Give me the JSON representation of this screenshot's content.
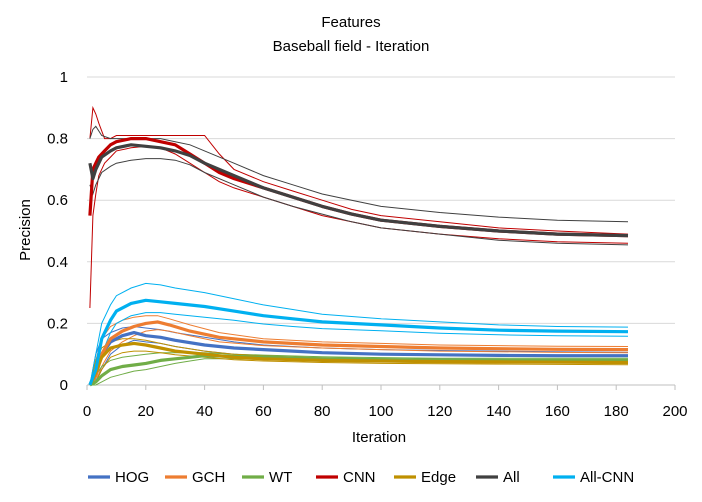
{
  "chart_data": {
    "type": "line",
    "title": "Features",
    "subtitle": "Baseball field - Iteration",
    "xlabel": "Iteration",
    "ylabel": "Precision",
    "xlim": [
      0,
      200
    ],
    "ylim": [
      0,
      1
    ],
    "xticks": [
      0,
      20,
      40,
      60,
      80,
      100,
      120,
      140,
      160,
      180,
      200
    ],
    "yticks": [
      0,
      0.2,
      0.4,
      0.6,
      0.8,
      1
    ],
    "ytick_labels": [
      "0",
      "0.2",
      "0.4",
      "0.6",
      "0.8",
      "1"
    ],
    "grid": "horizontal",
    "legend_position": "bottom",
    "series": [
      {
        "name": "HOG",
        "color": "#4472C4",
        "x": [
          1,
          3,
          5,
          8,
          12,
          16,
          20,
          25,
          30,
          40,
          50,
          60,
          70,
          80,
          100,
          120,
          140,
          160,
          184
        ],
        "mean": [
          0,
          0.03,
          0.1,
          0.14,
          0.16,
          0.17,
          0.16,
          0.155,
          0.145,
          0.13,
          0.12,
          0.115,
          0.11,
          0.105,
          0.1,
          0.098,
          0.096,
          0.095,
          0.095
        ],
        "upper": [
          0,
          0.1,
          0.15,
          0.17,
          0.185,
          0.19,
          0.185,
          0.18,
          0.17,
          0.155,
          0.14,
          0.13,
          0.125,
          0.12,
          0.115,
          0.112,
          0.11,
          0.108,
          0.106
        ],
        "lower": [
          0,
          0.01,
          0.05,
          0.1,
          0.13,
          0.145,
          0.14,
          0.135,
          0.125,
          0.11,
          0.1,
          0.095,
          0.09,
          0.088,
          0.085,
          0.084,
          0.083,
          0.082,
          0.082
        ]
      },
      {
        "name": "GCH",
        "color": "#ED7D31",
        "x": [
          1,
          3,
          5,
          8,
          12,
          16,
          20,
          24,
          28,
          35,
          45,
          60,
          80,
          100,
          120,
          140,
          160,
          184
        ],
        "mean": [
          0,
          0.03,
          0.1,
          0.15,
          0.175,
          0.19,
          0.2,
          0.205,
          0.195,
          0.175,
          0.155,
          0.14,
          0.13,
          0.125,
          0.12,
          0.118,
          0.116,
          0.115
        ],
        "upper": [
          0,
          0.08,
          0.15,
          0.19,
          0.21,
          0.22,
          0.225,
          0.225,
          0.215,
          0.195,
          0.17,
          0.15,
          0.14,
          0.135,
          0.13,
          0.128,
          0.126,
          0.125
        ],
        "lower": [
          0,
          0.01,
          0.06,
          0.11,
          0.14,
          0.16,
          0.175,
          0.18,
          0.175,
          0.16,
          0.14,
          0.128,
          0.12,
          0.115,
          0.11,
          0.108,
          0.106,
          0.105
        ]
      },
      {
        "name": "WT",
        "color": "#70AD47",
        "x": [
          1,
          3,
          5,
          8,
          12,
          16,
          20,
          25,
          30,
          35,
          40,
          50,
          60,
          80,
          100,
          120,
          140,
          160,
          184
        ],
        "mean": [
          0,
          0.01,
          0.03,
          0.05,
          0.06,
          0.065,
          0.07,
          0.08,
          0.085,
          0.09,
          0.095,
          0.093,
          0.09,
          0.085,
          0.082,
          0.08,
          0.08,
          0.08,
          0.08
        ],
        "upper": [
          0,
          0.03,
          0.06,
          0.08,
          0.09,
          0.095,
          0.1,
          0.105,
          0.105,
          0.105,
          0.105,
          0.1,
          0.097,
          0.092,
          0.089,
          0.087,
          0.087,
          0.087,
          0.087
        ],
        "lower": [
          0,
          0.0,
          0.01,
          0.025,
          0.035,
          0.045,
          0.05,
          0.06,
          0.07,
          0.078,
          0.085,
          0.085,
          0.083,
          0.078,
          0.075,
          0.073,
          0.073,
          0.073,
          0.073
        ]
      },
      {
        "name": "CNN",
        "color": "#C00000",
        "x": [
          1,
          2,
          3,
          4,
          6,
          8,
          10,
          15,
          20,
          25,
          30,
          35,
          40,
          45,
          50,
          60,
          70,
          80,
          90,
          100,
          120,
          140,
          160,
          184
        ],
        "mean": [
          0.55,
          0.7,
          0.72,
          0.74,
          0.76,
          0.78,
          0.79,
          0.8,
          0.8,
          0.79,
          0.78,
          0.75,
          0.72,
          0.69,
          0.67,
          0.64,
          0.61,
          0.58,
          0.555,
          0.535,
          0.515,
          0.5,
          0.49,
          0.485
        ],
        "upper": [
          0.8,
          0.9,
          0.88,
          0.85,
          0.8,
          0.8,
          0.81,
          0.81,
          0.81,
          0.81,
          0.81,
          0.81,
          0.81,
          0.75,
          0.7,
          0.66,
          0.63,
          0.6,
          0.57,
          0.55,
          0.53,
          0.51,
          0.5,
          0.49
        ],
        "lower": [
          0.25,
          0.55,
          0.62,
          0.68,
          0.72,
          0.74,
          0.76,
          0.77,
          0.775,
          0.77,
          0.75,
          0.72,
          0.69,
          0.66,
          0.64,
          0.61,
          0.58,
          0.55,
          0.53,
          0.51,
          0.49,
          0.475,
          0.465,
          0.46
        ]
      },
      {
        "name": "Edge",
        "color": "#BF9000",
        "x": [
          1,
          3,
          5,
          8,
          12,
          16,
          20,
          25,
          30,
          40,
          50,
          60,
          80,
          100,
          120,
          140,
          160,
          184
        ],
        "mean": [
          0,
          0.04,
          0.09,
          0.12,
          0.13,
          0.135,
          0.13,
          0.12,
          0.11,
          0.1,
          0.09,
          0.085,
          0.08,
          0.078,
          0.076,
          0.075,
          0.074,
          0.073
        ],
        "upper": [
          0,
          0.08,
          0.12,
          0.14,
          0.15,
          0.15,
          0.145,
          0.135,
          0.125,
          0.11,
          0.1,
          0.094,
          0.088,
          0.085,
          0.083,
          0.082,
          0.081,
          0.08
        ],
        "lower": [
          0,
          0.01,
          0.05,
          0.09,
          0.105,
          0.11,
          0.11,
          0.105,
          0.098,
          0.09,
          0.082,
          0.078,
          0.073,
          0.07,
          0.069,
          0.068,
          0.067,
          0.066
        ]
      },
      {
        "name": "All",
        "color": "#404040",
        "x": [
          1,
          2,
          3,
          5,
          8,
          10,
          15,
          20,
          25,
          30,
          35,
          40,
          50,
          60,
          70,
          80,
          90,
          100,
          120,
          140,
          160,
          184
        ],
        "mean": [
          0.72,
          0.67,
          0.7,
          0.74,
          0.76,
          0.77,
          0.78,
          0.775,
          0.77,
          0.76,
          0.745,
          0.72,
          0.68,
          0.64,
          0.61,
          0.58,
          0.555,
          0.535,
          0.515,
          0.5,
          0.49,
          0.485
        ],
        "upper": [
          0.8,
          0.83,
          0.84,
          0.81,
          0.8,
          0.8,
          0.8,
          0.8,
          0.8,
          0.79,
          0.78,
          0.76,
          0.72,
          0.68,
          0.65,
          0.62,
          0.6,
          0.58,
          0.56,
          0.545,
          0.535,
          0.53
        ],
        "lower": [
          0.65,
          0.62,
          0.65,
          0.69,
          0.71,
          0.72,
          0.73,
          0.735,
          0.735,
          0.73,
          0.715,
          0.69,
          0.65,
          0.61,
          0.58,
          0.555,
          0.53,
          0.51,
          0.49,
          0.47,
          0.46,
          0.455
        ]
      },
      {
        "name": "All-CNN",
        "color": "#00B0F0",
        "x": [
          1,
          3,
          5,
          8,
          10,
          15,
          20,
          25,
          30,
          40,
          50,
          60,
          70,
          80,
          100,
          120,
          140,
          160,
          184
        ],
        "mean": [
          0,
          0.05,
          0.15,
          0.21,
          0.24,
          0.265,
          0.275,
          0.27,
          0.265,
          0.255,
          0.24,
          0.225,
          0.215,
          0.205,
          0.195,
          0.185,
          0.178,
          0.175,
          0.173
        ],
        "upper": [
          0,
          0.1,
          0.2,
          0.26,
          0.29,
          0.315,
          0.33,
          0.325,
          0.315,
          0.3,
          0.28,
          0.26,
          0.245,
          0.23,
          0.215,
          0.205,
          0.195,
          0.19,
          0.188
        ],
        "lower": [
          0,
          0.02,
          0.1,
          0.17,
          0.2,
          0.225,
          0.235,
          0.235,
          0.23,
          0.22,
          0.21,
          0.198,
          0.19,
          0.183,
          0.176,
          0.168,
          0.163,
          0.16,
          0.158
        ]
      }
    ]
  }
}
